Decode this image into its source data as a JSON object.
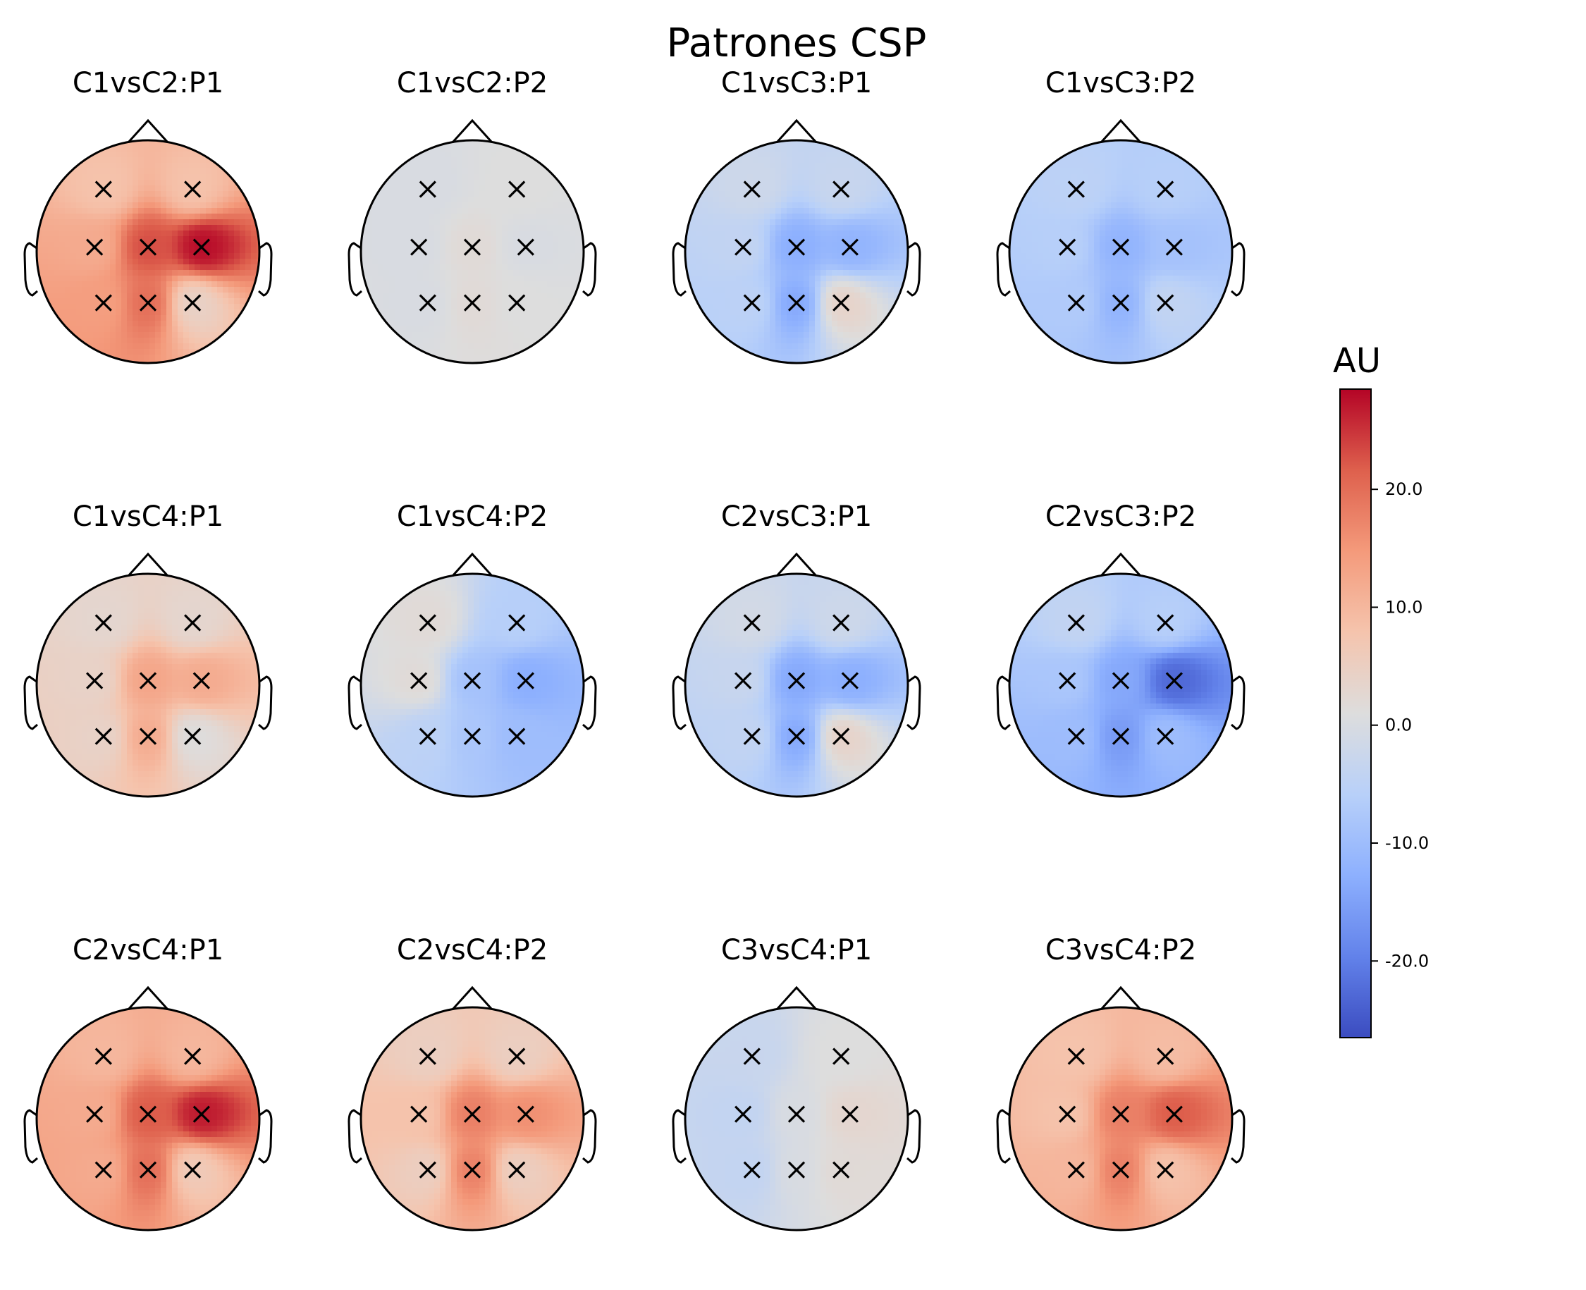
{
  "chart_data": {
    "type": "heatmap",
    "subtype": "topomap",
    "title": "Patrones CSP",
    "colormap": "coolwarm",
    "colorbar": {
      "label": "AU",
      "vmin": -26.5,
      "vmax": 28.5,
      "ticks": [
        20.0,
        10.0,
        0.0,
        -10.0,
        -20.0
      ],
      "tick_labels": [
        "20.0",
        "10.0",
        "0.0",
        "-10.0",
        "-20.0"
      ]
    },
    "sensor_marker": "x",
    "sensors": [
      {
        "x": -0.4,
        "y": 0.56
      },
      {
        "x": 0.4,
        "y": 0.56
      },
      {
        "x": -0.48,
        "y": 0.04
      },
      {
        "x": 0.0,
        "y": 0.04
      },
      {
        "x": 0.48,
        "y": 0.04
      },
      {
        "x": -0.4,
        "y": -0.46
      },
      {
        "x": 0.0,
        "y": -0.46
      },
      {
        "x": 0.4,
        "y": -0.46
      }
    ],
    "panels": [
      {
        "title": "C1vsC2:P1",
        "values": [
          8,
          8,
          12,
          23,
          28,
          14,
          20,
          4
        ]
      },
      {
        "title": "C1vsC2:P2",
        "values": [
          0,
          1,
          0,
          2,
          0,
          0,
          2,
          1
        ]
      },
      {
        "title": "C1vsC3:P1",
        "values": [
          -2,
          -3,
          -4,
          -13,
          -12,
          -5,
          -14,
          4
        ]
      },
      {
        "title": "C1vsC3:P2",
        "values": [
          -5,
          -6,
          -6,
          -12,
          -9,
          -7,
          -12,
          -4
        ]
      },
      {
        "title": "C1vsC4:P1",
        "values": [
          3,
          3,
          4,
          13,
          12,
          4,
          12,
          1
        ]
      },
      {
        "title": "C1vsC4:P2",
        "values": [
          2,
          -6,
          2,
          -9,
          -13,
          -5,
          -8,
          -10
        ]
      },
      {
        "title": "C2vsC3:P1",
        "values": [
          -1,
          -2,
          -3,
          -14,
          -13,
          -4,
          -14,
          4
        ]
      },
      {
        "title": "C2vsC3:P2",
        "values": [
          -4,
          -6,
          -8,
          -14,
          -23,
          -10,
          -16,
          -10
        ]
      },
      {
        "title": "C2vsC4:P1",
        "values": [
          10,
          10,
          12,
          22,
          27,
          12,
          20,
          6
        ]
      },
      {
        "title": "C2vsC4:P2",
        "values": [
          5,
          5,
          8,
          18,
          16,
          5,
          18,
          5
        ]
      },
      {
        "title": "C3vsC4:P1",
        "values": [
          -3,
          1,
          -4,
          0,
          3,
          -4,
          0,
          2
        ]
      },
      {
        "title": "C3vsC4:P2",
        "values": [
          8,
          9,
          8,
          18,
          22,
          10,
          18,
          8
        ]
      }
    ]
  }
}
